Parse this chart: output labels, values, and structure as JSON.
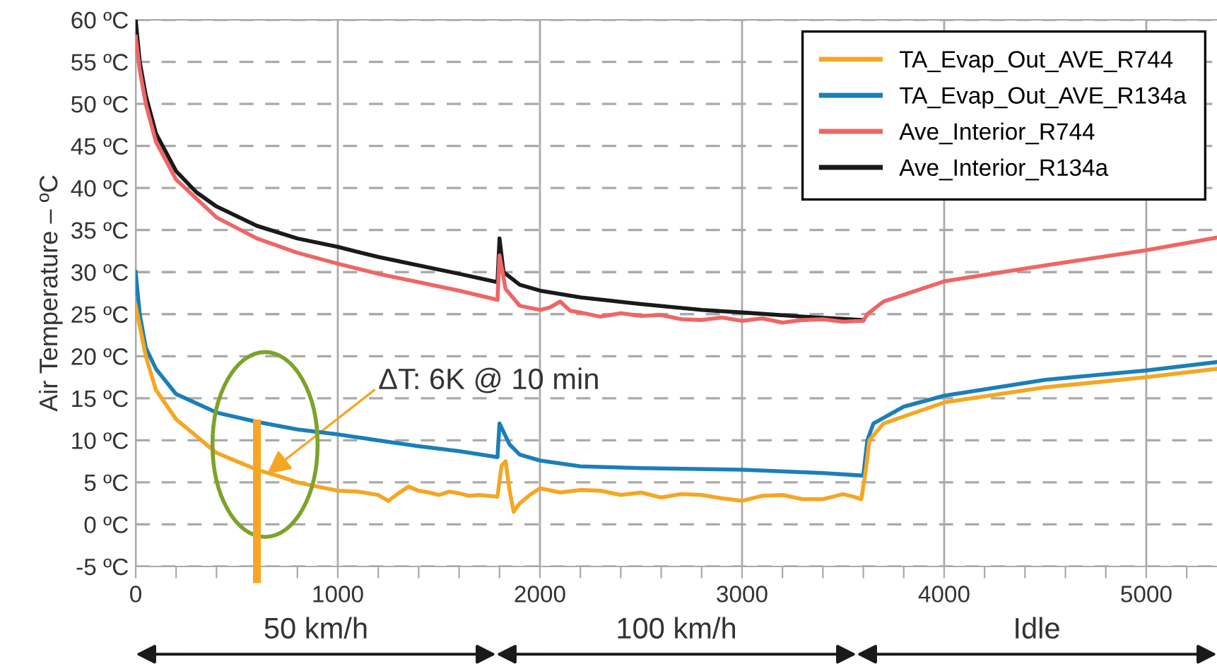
{
  "chart_data": {
    "type": "line",
    "ylabel": "Air Temperature – ºC",
    "xlim": [
      0,
      5350
    ],
    "ylim": [
      -5,
      60
    ],
    "xticks": [
      0,
      {
        "value": 200,
        "label": null
      },
      {
        "value": 400,
        "label": null
      },
      {
        "value": 600,
        "label": null
      },
      {
        "value": 800,
        "label": null
      },
      1000,
      {
        "value": 1200,
        "label": null
      },
      {
        "value": 1400,
        "label": null
      },
      {
        "value": 1600,
        "label": null
      },
      {
        "value": 1800,
        "label": null
      },
      2000,
      {
        "value": 2200,
        "label": null
      },
      {
        "value": 2400,
        "label": null
      },
      {
        "value": 2600,
        "label": null
      },
      {
        "value": 2800,
        "label": null
      },
      3000,
      {
        "value": 3200,
        "label": null
      },
      {
        "value": 3400,
        "label": null
      },
      {
        "value": 3600,
        "label": null
      },
      {
        "value": 3800,
        "label": null
      },
      4000,
      {
        "value": 4200,
        "label": null
      },
      {
        "value": 4400,
        "label": null
      },
      {
        "value": 4600,
        "label": null
      },
      {
        "value": 4800,
        "label": null
      },
      5000,
      {
        "value": 5200,
        "label": null
      }
    ],
    "yticks": [
      {
        "value": -5,
        "label": "-5 ºC"
      },
      {
        "value": 0,
        "label": "0 ºC"
      },
      {
        "value": 5,
        "label": "5 ºC"
      },
      {
        "value": 10,
        "label": "10 ºC"
      },
      {
        "value": 15,
        "label": "15 ºC"
      },
      {
        "value": 20,
        "label": "20 ºC"
      },
      {
        "value": 25,
        "label": "25 ºC"
      },
      {
        "value": 30,
        "label": "30 ºC"
      },
      {
        "value": 35,
        "label": "35 ºC"
      },
      {
        "value": 40,
        "label": "40 ºC"
      },
      {
        "value": 45,
        "label": "45 ºC"
      },
      {
        "value": 50,
        "label": "50 ºC"
      },
      {
        "value": 55,
        "label": "55 ºC"
      },
      {
        "value": 60,
        "label": "60 ºC"
      }
    ],
    "grid": true,
    "legend": "top right",
    "marker": "none",
    "line_style": "solid",
    "series": [
      {
        "name": "TA_Evap_Out_AVE_R744",
        "color": "#f5a623",
        "x": [
          0,
          50,
          100,
          200,
          300,
          400,
          500,
          600,
          700,
          800,
          900,
          1000,
          1100,
          1200,
          1250,
          1300,
          1350,
          1400,
          1450,
          1500,
          1550,
          1600,
          1650,
          1700,
          1790,
          1810,
          1830,
          1850,
          1870,
          1900,
          1950,
          2000,
          2100,
          2200,
          2300,
          2400,
          2500,
          2600,
          2700,
          2800,
          2900,
          3000,
          3100,
          3200,
          3300,
          3400,
          3500,
          3550,
          3590,
          3610,
          3630,
          3700,
          4000,
          4500,
          5000,
          5350
        ],
        "values": [
          26,
          20,
          16,
          12.5,
          10.5,
          8.5,
          7.5,
          6.5,
          5.8,
          5,
          4.5,
          4,
          3.9,
          3.5,
          2.8,
          3.7,
          4.5,
          4,
          3.8,
          3.5,
          3.9,
          3.7,
          3.4,
          3.5,
          3.3,
          7,
          7.5,
          4,
          1.5,
          2.5,
          3.5,
          4.3,
          3.8,
          4.1,
          4,
          3.5,
          3.8,
          3.2,
          3.6,
          3.5,
          3.1,
          2.8,
          3.4,
          3.5,
          3.0,
          3,
          3.6,
          3.3,
          3,
          6,
          10,
          12,
          14.5,
          16.3,
          17.5,
          18.5
        ]
      },
      {
        "name": "TA_Evap_Out_AVE_R134a",
        "color": "#1a7fb8",
        "x": [
          0,
          20,
          50,
          100,
          200,
          400,
          600,
          800,
          1000,
          1200,
          1400,
          1600,
          1790,
          1800,
          1850,
          1900,
          2000,
          2200,
          2500,
          3000,
          3400,
          3600,
          3620,
          3650,
          3800,
          4000,
          4500,
          5000,
          5350
        ],
        "values": [
          30,
          25,
          21,
          18.5,
          15.5,
          13.3,
          12.2,
          11.3,
          10.7,
          10,
          9.3,
          8.7,
          8,
          12,
          9.5,
          8.3,
          7.6,
          6.9,
          6.7,
          6.5,
          6.1,
          5.8,
          10,
          12,
          14,
          15.3,
          17.2,
          18.3,
          19.3
        ]
      },
      {
        "name": "Ave_Interior_R744",
        "color": "#ee6666",
        "x": [
          0,
          20,
          50,
          100,
          200,
          400,
          600,
          800,
          1000,
          1200,
          1400,
          1600,
          1790,
          1800,
          1830,
          1900,
          2000,
          2050,
          2100,
          2150,
          2200,
          2300,
          2400,
          2500,
          2600,
          2700,
          2800,
          2900,
          3000,
          3100,
          3200,
          3300,
          3400,
          3500,
          3600,
          3620,
          3700,
          4000,
          4500,
          5000,
          5350
        ],
        "values": [
          58,
          54,
          50,
          45.5,
          41,
          36.5,
          34,
          32.3,
          31,
          29.8,
          28.8,
          27.8,
          26.7,
          32,
          28,
          26,
          25.5,
          25.8,
          26.5,
          25.4,
          25.2,
          24.7,
          25.1,
          24.8,
          24.9,
          24.4,
          24.3,
          24.6,
          24.2,
          24.5,
          24.0,
          24.3,
          24.4,
          24.1,
          24.2,
          25,
          26.5,
          28.9,
          30.8,
          32.6,
          34.1
        ]
      },
      {
        "name": "Ave_Interior_R134a",
        "color": "#1a1a1a",
        "x": [
          0,
          20,
          50,
          100,
          200,
          300,
          400,
          600,
          800,
          1000,
          1200,
          1400,
          1600,
          1790,
          1800,
          1820,
          1900,
          2000,
          2200,
          2500,
          2800,
          3000,
          3300,
          3600
        ],
        "values": [
          60,
          55,
          51,
          46.5,
          42,
          39.5,
          37.8,
          35.5,
          34,
          33,
          31.8,
          30.8,
          29.8,
          28.8,
          34,
          30,
          28.5,
          27.8,
          27,
          26.2,
          25.5,
          25.2,
          24.7,
          24.3
        ]
      }
    ],
    "annotations": [
      {
        "text": "ΔT: 6K @ 10 min",
        "x": 650,
        "y": 6
      },
      "50 km/h",
      "100 km/h",
      "Idle"
    ]
  }
}
